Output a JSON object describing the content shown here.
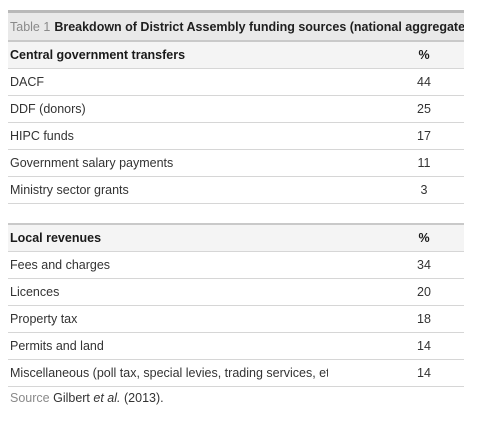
{
  "caption": {
    "label": "Table 1",
    "title": "Breakdown of District Assembly funding sources (national aggregates)"
  },
  "sections": [
    {
      "header": {
        "label": "Central government transfers",
        "value": "%"
      },
      "rows": [
        {
          "label": "DACF",
          "value": "44"
        },
        {
          "label": "DDF (donors)",
          "value": "25"
        },
        {
          "label": "HIPC funds",
          "value": "17"
        },
        {
          "label": "Government salary payments",
          "value": "11"
        },
        {
          "label": "Ministry sector grants",
          "value": "3"
        }
      ]
    },
    {
      "header": {
        "label": "Local revenues",
        "value": "%"
      },
      "rows": [
        {
          "label": "Fees and charges",
          "value": "34"
        },
        {
          "label": "Licences",
          "value": "20"
        },
        {
          "label": "Property tax",
          "value": "18"
        },
        {
          "label": "Permits and land",
          "value": "14"
        },
        {
          "label": "Miscellaneous (poll tax, special levies, trading services, etc)",
          "value": "14"
        }
      ]
    }
  ],
  "source": {
    "label": "Source",
    "authors": "Gilbert",
    "etal": "et al.",
    "year": "(2013)."
  }
}
